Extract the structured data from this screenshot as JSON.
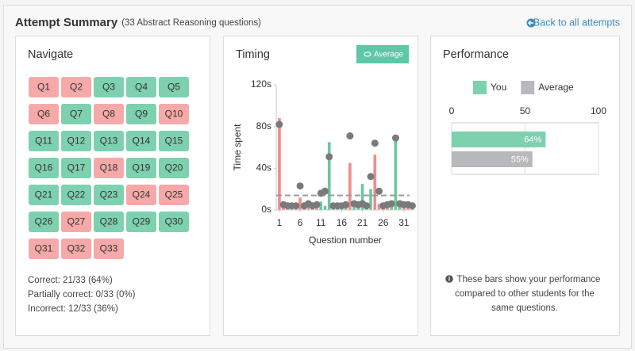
{
  "header": {
    "title": "Attempt Summary",
    "subtitle": "(33 Abstract Reasoning questions)",
    "link": "Back to all attempts"
  },
  "navigate": {
    "title": "Navigate",
    "questions": [
      {
        "label": "Q1",
        "color": "#f6a9a9"
      },
      {
        "label": "Q2",
        "color": "#f6a9a9"
      },
      {
        "label": "Q3",
        "color": "#7ed1ae"
      },
      {
        "label": "Q4",
        "color": "#7ed1ae"
      },
      {
        "label": "Q5",
        "color": "#7ed1ae"
      },
      {
        "label": "Q6",
        "color": "#f6a9a9"
      },
      {
        "label": "Q7",
        "color": "#7ed1ae"
      },
      {
        "label": "Q8",
        "color": "#f6a9a9"
      },
      {
        "label": "Q9",
        "color": "#7ed1ae"
      },
      {
        "label": "Q10",
        "color": "#f6a9a9"
      },
      {
        "label": "Q11",
        "color": "#7ed1ae"
      },
      {
        "label": "Q12",
        "color": "#7ed1ae"
      },
      {
        "label": "Q13",
        "color": "#7ed1ae"
      },
      {
        "label": "Q14",
        "color": "#7ed1ae"
      },
      {
        "label": "Q15",
        "color": "#7ed1ae"
      },
      {
        "label": "Q16",
        "color": "#7ed1ae"
      },
      {
        "label": "Q17",
        "color": "#7ed1ae"
      },
      {
        "label": "Q18",
        "color": "#f6a9a9"
      },
      {
        "label": "Q19",
        "color": "#7ed1ae"
      },
      {
        "label": "Q20",
        "color": "#7ed1ae"
      },
      {
        "label": "Q21",
        "color": "#7ed1ae"
      },
      {
        "label": "Q22",
        "color": "#7ed1ae"
      },
      {
        "label": "Q23",
        "color": "#7ed1ae"
      },
      {
        "label": "Q24",
        "color": "#f6a9a9"
      },
      {
        "label": "Q25",
        "color": "#f6a9a9"
      },
      {
        "label": "Q26",
        "color": "#7ed1ae"
      },
      {
        "label": "Q27",
        "color": "#f6a9a9"
      },
      {
        "label": "Q28",
        "color": "#7ed1ae"
      },
      {
        "label": "Q29",
        "color": "#7ed1ae"
      },
      {
        "label": "Q30",
        "color": "#7ed1ae"
      },
      {
        "label": "Q31",
        "color": "#f6a9a9"
      },
      {
        "label": "Q32",
        "color": "#f6a9a9"
      },
      {
        "label": "Q33",
        "color": "#f6a9a9"
      }
    ],
    "summary": [
      "Correct: 21/33 (64%)",
      "Partially correct: 0/33 (0%)",
      "Incorrect: 12/33 (36%)"
    ]
  },
  "timing_button": "Average",
  "performance_note": "These bars show your performance compared to other students for the same questions.",
  "chart_data": [
    {
      "type": "bar",
      "title": "Timing",
      "x_label": "Question number",
      "y_label": "Time spent",
      "x": [
        1,
        2,
        3,
        4,
        5,
        6,
        7,
        8,
        9,
        10,
        11,
        12,
        13,
        14,
        15,
        16,
        17,
        18,
        19,
        20,
        21,
        22,
        23,
        24,
        25,
        26,
        27,
        28,
        29,
        30,
        31,
        32,
        33
      ],
      "values": [
        88,
        6,
        3,
        4,
        3,
        12,
        3,
        5,
        3,
        6,
        8,
        4,
        65,
        3,
        2,
        3,
        4,
        45,
        4,
        3,
        25,
        5,
        20,
        53,
        6,
        3,
        4,
        5,
        68,
        4,
        3,
        5,
        3
      ],
      "bar_colors": [
        "#f08c8c",
        "#f08c8c",
        "#6cc79f",
        "#6cc79f",
        "#6cc79f",
        "#f08c8c",
        "#6cc79f",
        "#f08c8c",
        "#6cc79f",
        "#f08c8c",
        "#6cc79f",
        "#6cc79f",
        "#6cc79f",
        "#6cc79f",
        "#6cc79f",
        "#6cc79f",
        "#6cc79f",
        "#f08c8c",
        "#6cc79f",
        "#6cc79f",
        "#6cc79f",
        "#6cc79f",
        "#6cc79f",
        "#f08c8c",
        "#f08c8c",
        "#6cc79f",
        "#f08c8c",
        "#6cc79f",
        "#6cc79f",
        "#6cc79f",
        "#f08c8c",
        "#f08c8c",
        "#f08c8c"
      ],
      "average_values": [
        82,
        5,
        4,
        4,
        4,
        23,
        4,
        6,
        4,
        5,
        16,
        18,
        51,
        4,
        4,
        4,
        5,
        71,
        6,
        5,
        6,
        4,
        32,
        64,
        18,
        4,
        5,
        6,
        69,
        6,
        5,
        5,
        4
      ],
      "average_color": "#7a7a7a",
      "average_line": 14,
      "xlim": [
        0.25,
        33.5
      ],
      "xticks": [
        1,
        6,
        11,
        16,
        21,
        26,
        31
      ],
      "ylim": [
        0,
        120
      ],
      "yticks": [
        {
          "value": 0,
          "label": "0s"
        },
        {
          "value": 40,
          "label": "40s"
        },
        {
          "value": 80,
          "label": "80s"
        },
        {
          "value": 120,
          "label": "120s"
        }
      ]
    },
    {
      "type": "hbar",
      "title": "Performance",
      "series": [
        {
          "name": "You",
          "color": "#7ed1ae",
          "values": [
            64
          ],
          "value_labels": [
            "64%"
          ]
        },
        {
          "name": "Average",
          "color": "#b8b9bd",
          "values": [
            55
          ],
          "value_labels": [
            "55%"
          ]
        }
      ],
      "xlim": [
        0,
        100
      ],
      "xticks": [
        0,
        50,
        100
      ],
      "grid": true
    }
  ]
}
